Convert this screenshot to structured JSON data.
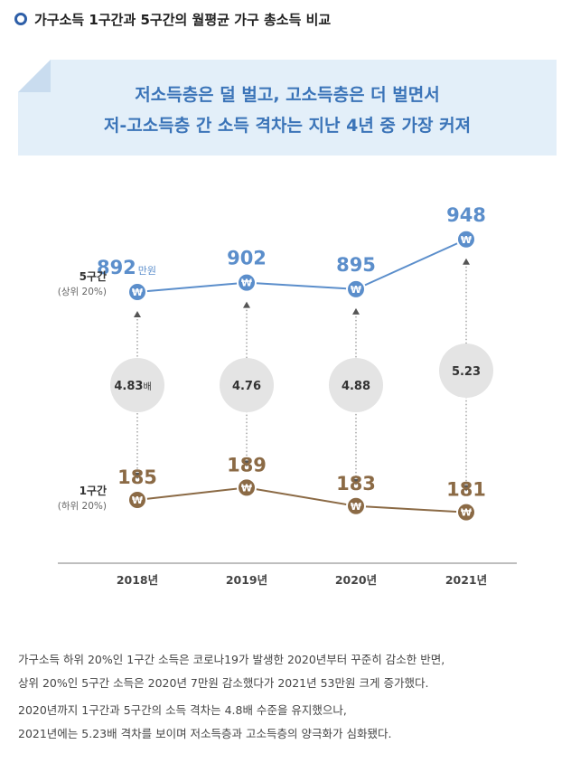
{
  "header": {
    "title": "가구소득 1구간과 5구간의 월평균 가구 총소득 비교",
    "bullet_color": "#2e5fa8"
  },
  "banner": {
    "line1": "저소득층은 덜 벌고, 고소득층은 더 벌면서",
    "line2": "저-고소득층 간 소득 격차는 지난 4년 중 가장 커져",
    "text_color": "#3b74b8",
    "background": "#e3eff9"
  },
  "chart_data": {
    "type": "line",
    "categories": [
      "2018년",
      "2019년",
      "2020년",
      "2021년"
    ],
    "series": [
      {
        "name": "5구간",
        "sublabel": "(상위 20%)",
        "values": [
          892,
          902,
          895,
          948
        ],
        "color": "#5b8ecb",
        "marker_icon": "won-icon"
      },
      {
        "name": "1구간",
        "sublabel": "(하위 20%)",
        "values": [
          185,
          189,
          183,
          181
        ],
        "color": "#8b6a45",
        "marker_icon": "won-icon"
      }
    ],
    "unit_label": "만원",
    "ratios": [
      "4.83",
      "4.76",
      "4.88",
      "5.23"
    ],
    "ratio_unit": "배",
    "legend_placement": "left",
    "grid": false
  },
  "notes": {
    "p1_line1": "가구소득 하위 20%인 1구간 소득은 코로나19가 발생한 2020년부터 꾸준히 감소한 반면,",
    "p1_line2": "상위 20%인 5구간 소득은 2020년 7만원 감소했다가 2021년 53만원 크게 증가했다.",
    "p2_line1": "2020년까지 1구간과 5구간의 소득 격차는 4.8배 수준을 유지했으나,",
    "p2_line2": "2021년에는 5.23배 격차를 보이며 저소득층과 고소득층의 양극화가 심화됐다."
  }
}
